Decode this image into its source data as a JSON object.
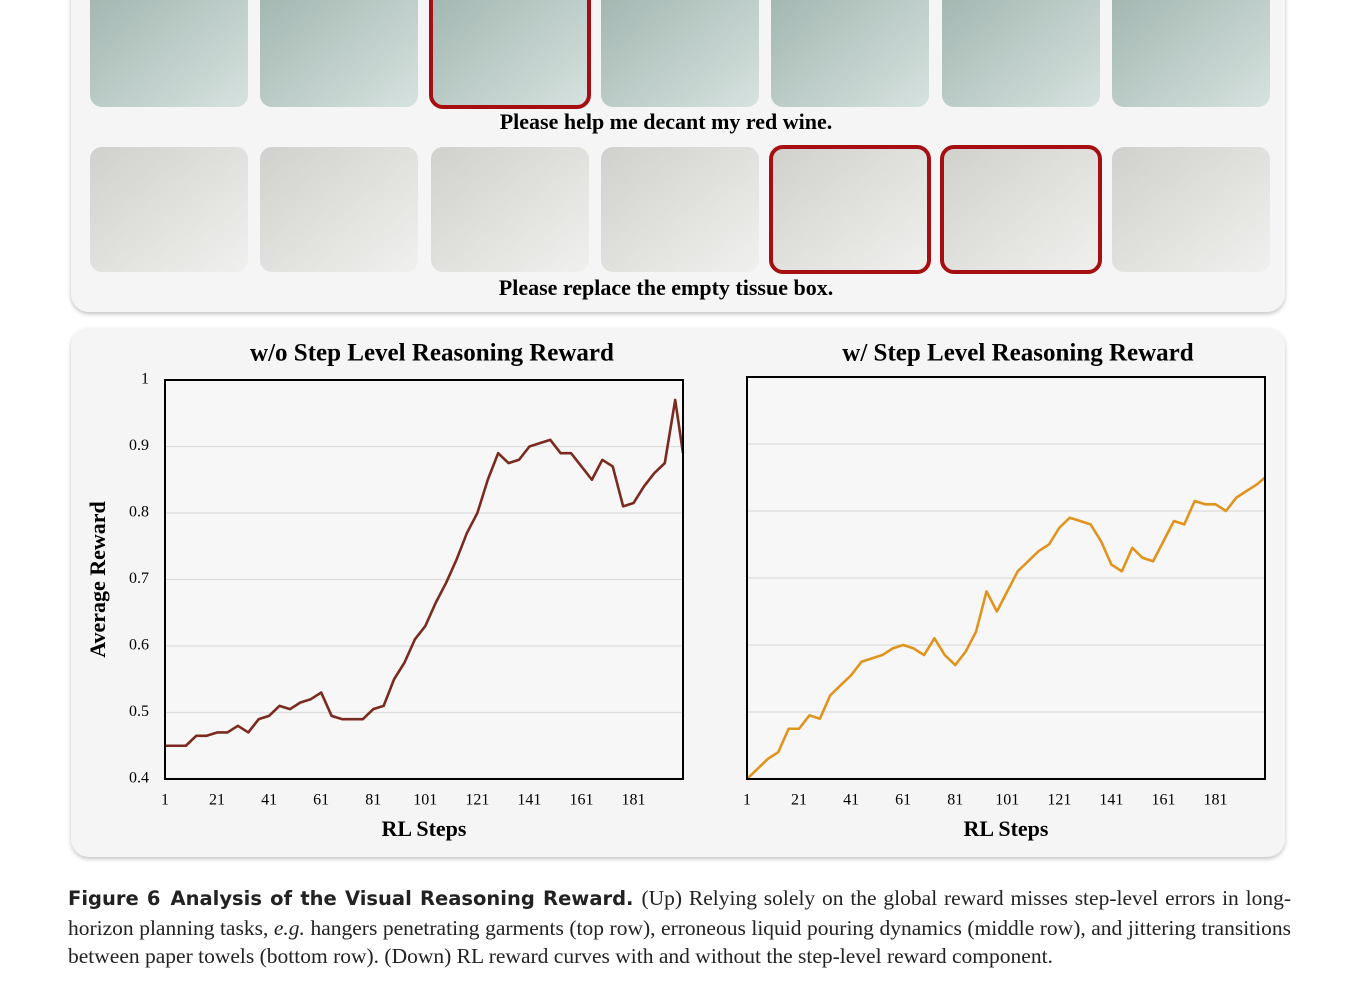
{
  "image_captions": [
    "Please help me decant my red wine.",
    "Please replace the empty tissue box."
  ],
  "chart_data": [
    {
      "type": "line",
      "title": "w/o Step Level Reasoning Reward",
      "xlabel": "RL Steps",
      "ylabel": "Average Reward",
      "x": [
        1,
        5,
        9,
        13,
        17,
        21,
        25,
        29,
        33,
        37,
        41,
        45,
        49,
        53,
        57,
        61,
        65,
        69,
        73,
        77,
        81,
        85,
        89,
        93,
        97,
        101,
        105,
        109,
        113,
        117,
        121,
        125,
        129,
        133,
        137,
        141,
        145,
        149,
        153,
        157,
        161,
        165,
        169,
        173,
        177,
        181,
        185,
        189,
        193,
        197,
        200
      ],
      "series": [
        {
          "color": "#7b2a1f",
          "values": [
            0.45,
            0.45,
            0.45,
            0.465,
            0.465,
            0.47,
            0.47,
            0.48,
            0.47,
            0.49,
            0.495,
            0.51,
            0.505,
            0.515,
            0.52,
            0.53,
            0.495,
            0.49,
            0.49,
            0.49,
            0.505,
            0.51,
            0.55,
            0.575,
            0.61,
            0.63,
            0.665,
            0.695,
            0.73,
            0.77,
            0.8,
            0.85,
            0.89,
            0.875,
            0.88,
            0.9,
            0.905,
            0.91,
            0.89,
            0.89,
            0.87,
            0.85,
            0.88,
            0.87,
            0.81,
            0.815,
            0.84,
            0.86,
            0.875,
            0.97,
            0.89
          ]
        }
      ],
      "xlim": [
        1,
        200
      ],
      "xticks": [
        1,
        21,
        41,
        61,
        81,
        101,
        121,
        141,
        161,
        181
      ],
      "ylim": [
        0.4,
        1
      ],
      "yticks": [
        0.4,
        0.5,
        0.6,
        0.7,
        0.8,
        0.9,
        1
      ],
      "ytick_labels": true,
      "grid": true
    },
    {
      "type": "line",
      "title": "w/ Step Level Reasoning Reward",
      "xlabel": "RL Steps",
      "x": [
        1,
        5,
        9,
        13,
        17,
        21,
        25,
        29,
        33,
        37,
        41,
        45,
        49,
        53,
        57,
        61,
        65,
        69,
        73,
        77,
        81,
        85,
        89,
        93,
        97,
        101,
        105,
        109,
        113,
        117,
        121,
        125,
        129,
        133,
        137,
        141,
        145,
        149,
        153,
        157,
        161,
        165,
        169,
        173,
        177,
        181,
        185,
        189,
        193,
        197,
        200
      ],
      "series": [
        {
          "color": "#e0941e",
          "values": [
            0.4,
            0.415,
            0.43,
            0.44,
            0.475,
            0.475,
            0.495,
            0.49,
            0.525,
            0.54,
            0.555,
            0.575,
            0.58,
            0.585,
            0.595,
            0.6,
            0.595,
            0.585,
            0.61,
            0.585,
            0.57,
            0.59,
            0.62,
            0.68,
            0.65,
            0.68,
            0.71,
            0.725,
            0.74,
            0.75,
            0.775,
            0.79,
            0.785,
            0.78,
            0.755,
            0.72,
            0.71,
            0.745,
            0.73,
            0.725,
            0.755,
            0.785,
            0.78,
            0.815,
            0.81,
            0.81,
            0.8,
            0.82,
            0.83,
            0.84,
            0.85
          ]
        }
      ],
      "xlim": [
        1,
        200
      ],
      "xticks": [
        1,
        21,
        41,
        61,
        81,
        101,
        121,
        141,
        161,
        181
      ],
      "ylim": [
        0.4,
        1
      ],
      "yticks": [
        0.4,
        0.5,
        0.6,
        0.7,
        0.8,
        0.9,
        1
      ],
      "ytick_labels": false,
      "grid": true
    }
  ],
  "figure_caption": {
    "label": "Figure 6",
    "title": "Analysis of the Visual Reasoning Reward.",
    "body": [
      "(Up) Relying solely on the global reward misses step-level errors in long-horizon planning tasks, ",
      "e.g.",
      " hangers penetrating garments (top row), erroneous liquid pouring dynamics (middle row), and jittering transitions between paper towels (bottom row). (Down) RL reward curves with and without the step-level reward component."
    ]
  }
}
